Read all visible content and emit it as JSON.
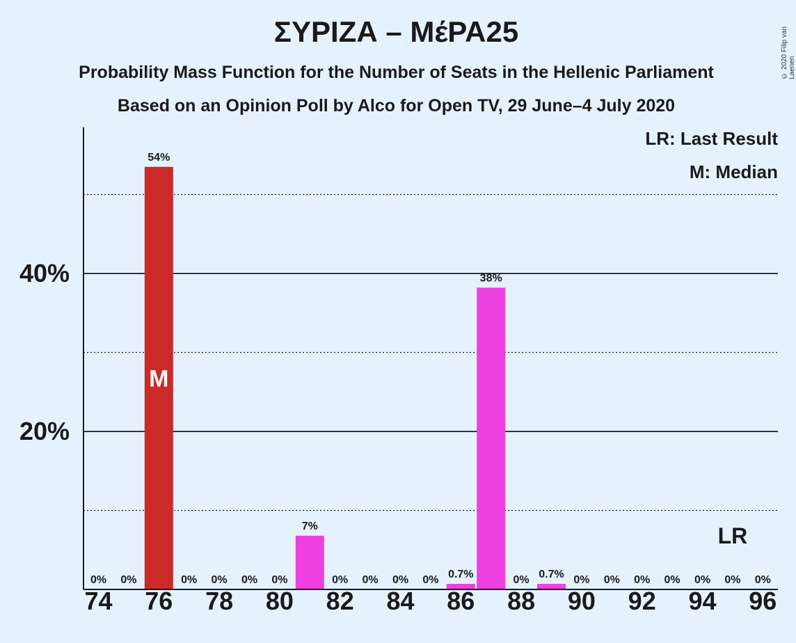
{
  "title": "ΣΥΡΙΖΑ – ΜέΡΑ25",
  "subtitle": "Probability Mass Function for the Number of Seats in the Hellenic Parliament",
  "subtitle2": "Based on an Opinion Poll by Alco for Open TV, 29 June–4 July 2020",
  "copyright": "© 2020 Filip van Laenen",
  "legend": {
    "last_result": "LR: Last Result",
    "median": "M: Median"
  },
  "colors": {
    "background": "#e5f2fd",
    "median_bar": "#cc2929",
    "bar": "#ee3fe0",
    "text": "#1a1a1a"
  },
  "chart_data": {
    "type": "bar",
    "x": [
      74,
      75,
      76,
      77,
      78,
      79,
      80,
      81,
      82,
      83,
      84,
      85,
      86,
      87,
      88,
      89,
      90,
      91,
      92,
      93,
      94,
      95,
      96
    ],
    "values": [
      0,
      0,
      53.5,
      0,
      0,
      0,
      0,
      6.8,
      0,
      0,
      0,
      0,
      0.7,
      38.2,
      0,
      0.7,
      0,
      0,
      0,
      0,
      0,
      0,
      0
    ],
    "data_labels": [
      "0%",
      "0%",
      "54%",
      "0%",
      "0%",
      "0%",
      "0%",
      "7%",
      "0%",
      "0%",
      "0%",
      "0%",
      "0.7%",
      "38%",
      "0%",
      "0.7%",
      "0%",
      "0%",
      "0%",
      "0%",
      "0%",
      "0%",
      "0%"
    ],
    "x_ticks": [
      "74",
      "76",
      "78",
      "80",
      "82",
      "84",
      "86",
      "88",
      "90",
      "92",
      "94",
      "96"
    ],
    "y_ticks": [
      {
        "value": 20,
        "label": "20%"
      },
      {
        "value": 40,
        "label": "40%"
      }
    ],
    "y_minor_gridlines": [
      10,
      30,
      50
    ],
    "ylim": [
      0,
      58.5
    ],
    "median_seat": 76,
    "median_marker": "M",
    "last_result_seat": 95,
    "last_result_marker": "LR",
    "legend_position": "top-right",
    "grid": true
  }
}
